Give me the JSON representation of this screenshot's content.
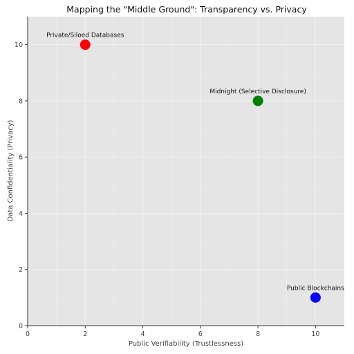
{
  "chart_data": {
    "type": "scatter",
    "title": "Mapping the \"Middle Ground\": Transparency vs. Privacy",
    "xlabel": "Public Verifiability (Trustlessness)",
    "ylabel": "Data Confidentiality (Privacy)",
    "xlim": [
      0,
      11
    ],
    "ylim": [
      0,
      11
    ],
    "xticks": [
      0,
      2,
      4,
      6,
      8,
      10
    ],
    "yticks": [
      0,
      2,
      4,
      6,
      8,
      10
    ],
    "grid": true,
    "background_color": "#e5e5e5",
    "grid_color": "#f2f2f2",
    "points": [
      {
        "label": "Private/Siloed Databases",
        "x": 2,
        "y": 10,
        "color": "#ff0000"
      },
      {
        "label": "Midnight (Selective Disclosure)",
        "x": 8,
        "y": 8,
        "color": "#008000"
      },
      {
        "label": "Public Blockchains",
        "x": 10,
        "y": 1,
        "color": "#0000ff"
      }
    ]
  }
}
